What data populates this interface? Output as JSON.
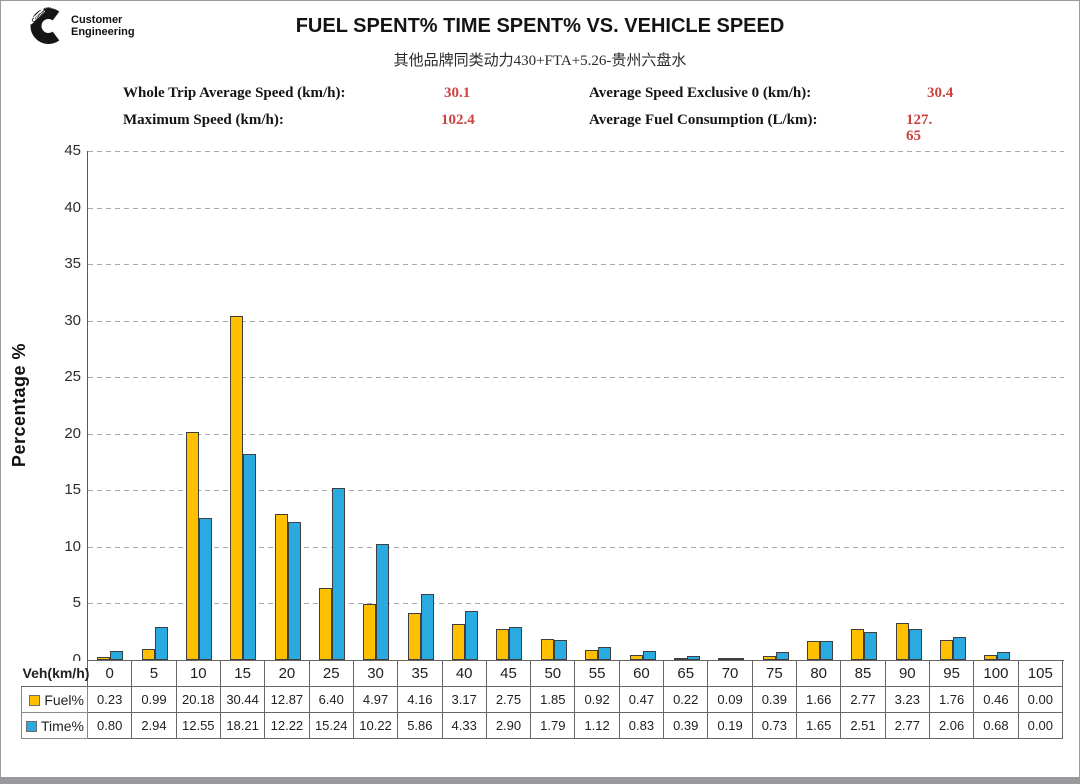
{
  "logo": {
    "brand": "Cummins",
    "line1": "Customer",
    "line2": "Engineering"
  },
  "header": {
    "title": "FUEL SPENT% TIME SPENT% VS. VEHICLE SPEED",
    "subtitle": "其他品牌同类动力430+FTA+5.26-贵州六盘水"
  },
  "stats": [
    {
      "label": "Whole Trip Average Speed (km/h):",
      "value": "30.1"
    },
    {
      "label": "Average Speed Exclusive 0 (km/h):",
      "value": "30.4"
    },
    {
      "label": "Maximum Speed (km/h):",
      "value": "102.4"
    },
    {
      "label": "Average Fuel Consumption (L/km):",
      "value": "127.\n65"
    }
  ],
  "colors": {
    "fuel": "#FFC000",
    "time": "#29ABE2",
    "stat_value_red": "#CC4440",
    "gridline": "#A8A8A8",
    "axis": "#595959"
  },
  "chart_data": {
    "type": "bar",
    "title": "FUEL SPENT% TIME SPENT% VS. VEHICLE SPEED",
    "xlabel": "Veh(km/h)",
    "ylabel": "Percentage %",
    "ylim": [
      0,
      45
    ],
    "ytick_step": 5,
    "grid": "horizontal-dashed",
    "legend_position": "left-of-data-table",
    "categories": [
      0,
      5,
      10,
      15,
      20,
      25,
      30,
      35,
      40,
      45,
      50,
      55,
      60,
      65,
      70,
      75,
      80,
      85,
      90,
      95,
      100,
      105
    ],
    "series": [
      {
        "name": "Fuel%",
        "color": "#FFC000",
        "values": [
          0.23,
          0.99,
          20.18,
          30.44,
          12.87,
          6.4,
          4.97,
          4.16,
          3.17,
          2.75,
          1.85,
          0.92,
          0.47,
          0.22,
          0.09,
          0.39,
          1.66,
          2.77,
          3.23,
          1.76,
          0.46,
          0.0
        ]
      },
      {
        "name": "Time%",
        "color": "#29ABE2",
        "values": [
          0.8,
          2.94,
          12.55,
          18.21,
          12.22,
          15.24,
          10.22,
          5.86,
          4.33,
          2.9,
          1.79,
          1.12,
          0.83,
          0.39,
          0.19,
          0.73,
          1.65,
          2.51,
          2.77,
          2.06,
          0.68,
          0.0
        ]
      }
    ]
  }
}
